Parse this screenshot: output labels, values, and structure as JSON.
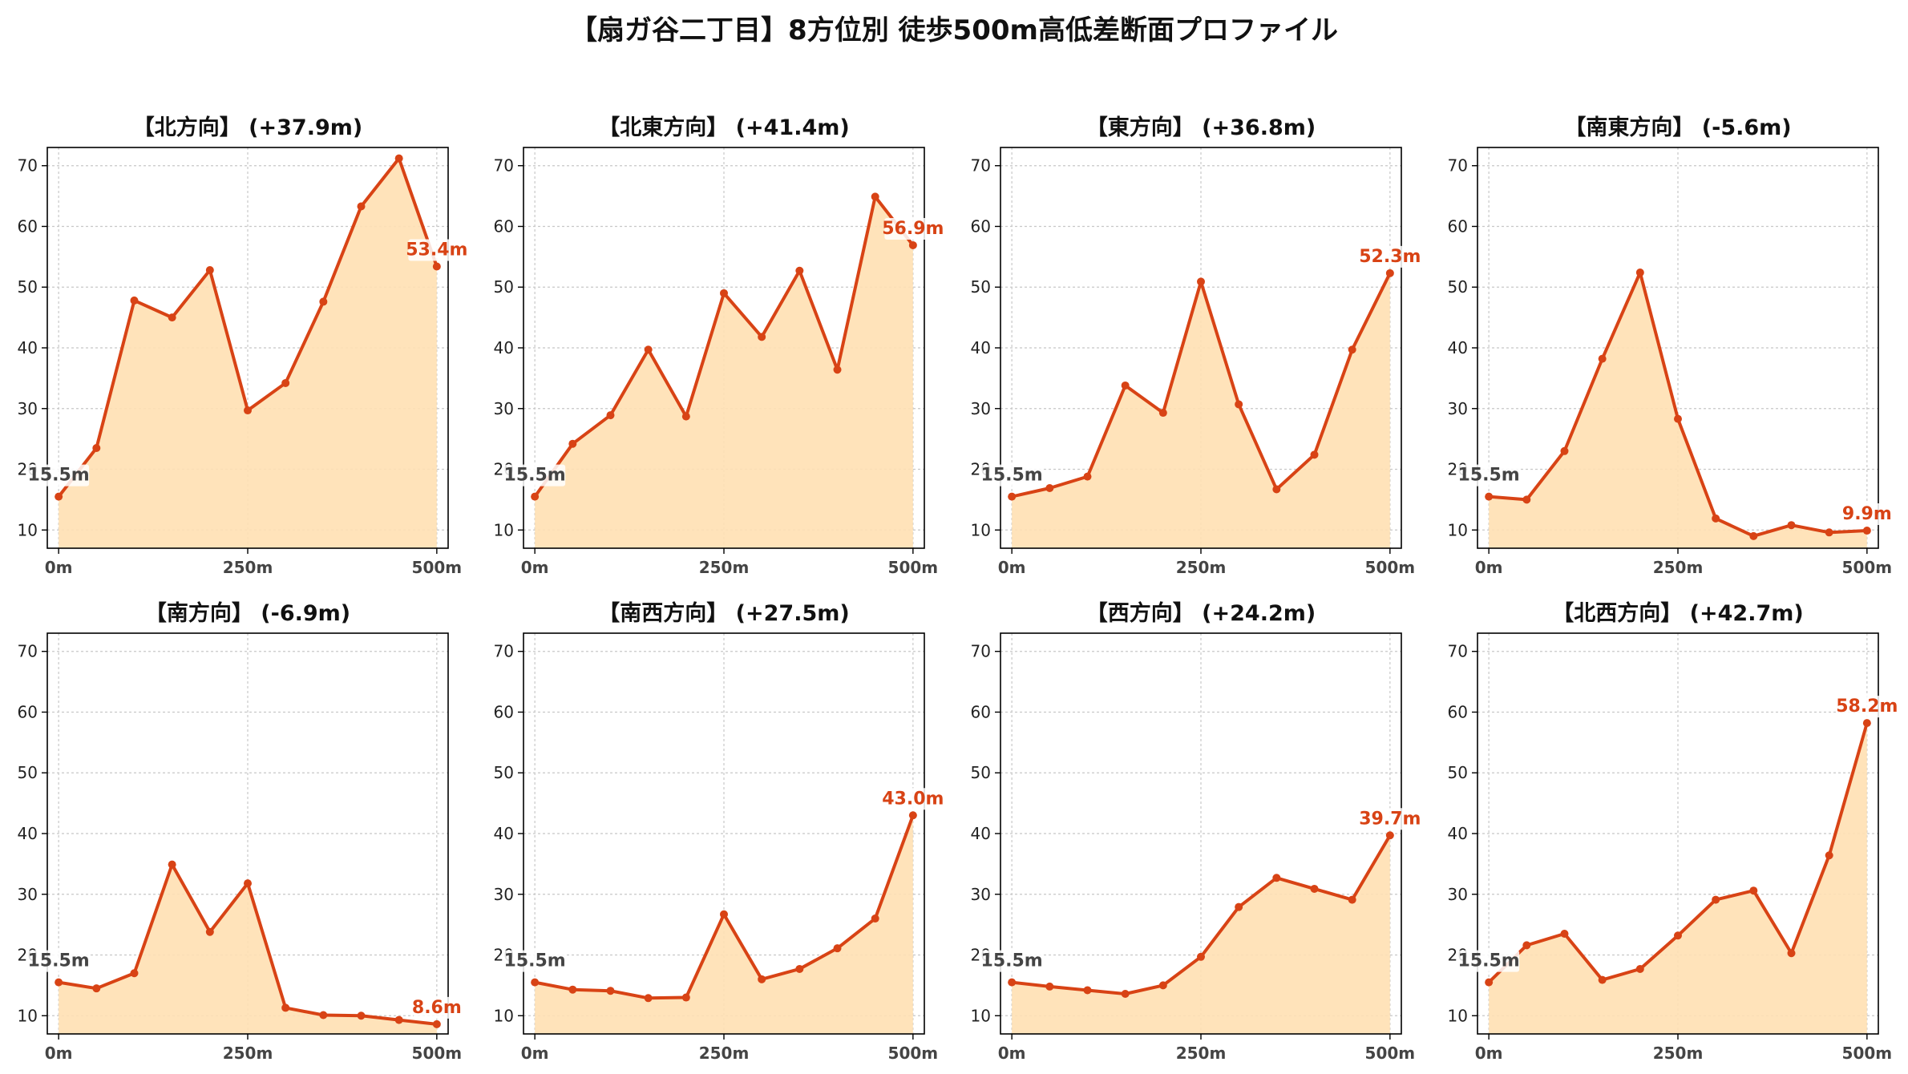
{
  "title": "【扇ガ谷二丁目】8方位別 徒歩500m高低差断面プロファイル",
  "colors": {
    "line": "#d84315",
    "fill": "#ffe0b2",
    "start_label": "#444444",
    "end_label": "#d84315",
    "grid": "#c8c8c8"
  },
  "chart_data": [
    {
      "type": "line",
      "title": "【北方向】 (+37.9m)",
      "x": [
        0,
        50,
        100,
        150,
        200,
        250,
        300,
        350,
        400,
        450,
        500
      ],
      "y": [
        15.5,
        23.5,
        47.8,
        45.0,
        52.8,
        29.7,
        34.2,
        47.6,
        63.3,
        71.2,
        53.4
      ],
      "start_label": "15.5m",
      "end_label": "53.4m",
      "xticks": [
        "0m",
        "250m",
        "500m"
      ],
      "yticks": [
        10,
        20,
        30,
        40,
        50,
        60,
        70
      ],
      "xlim": [
        -15,
        515
      ],
      "ylim": [
        7,
        73
      ],
      "grid": true
    },
    {
      "type": "line",
      "title": "【北東方向】 (+41.4m)",
      "x": [
        0,
        50,
        100,
        150,
        200,
        250,
        300,
        350,
        400,
        450,
        500
      ],
      "y": [
        15.5,
        24.2,
        28.9,
        39.7,
        28.7,
        49.0,
        41.8,
        52.7,
        36.4,
        64.9,
        56.9
      ],
      "start_label": "15.5m",
      "end_label": "56.9m",
      "xticks": [
        "0m",
        "250m",
        "500m"
      ],
      "yticks": [
        10,
        20,
        30,
        40,
        50,
        60,
        70
      ],
      "xlim": [
        -15,
        515
      ],
      "ylim": [
        7,
        73
      ],
      "grid": true
    },
    {
      "type": "line",
      "title": "【東方向】 (+36.8m)",
      "x": [
        0,
        50,
        100,
        150,
        200,
        250,
        300,
        350,
        400,
        450,
        500
      ],
      "y": [
        15.5,
        16.9,
        18.8,
        33.8,
        29.3,
        50.9,
        30.7,
        16.7,
        22.4,
        39.7,
        52.3
      ],
      "start_label": "15.5m",
      "end_label": "52.3m",
      "xticks": [
        "0m",
        "250m",
        "500m"
      ],
      "yticks": [
        10,
        20,
        30,
        40,
        50,
        60,
        70
      ],
      "xlim": [
        -15,
        515
      ],
      "ylim": [
        7,
        73
      ],
      "grid": true
    },
    {
      "type": "line",
      "title": "【南東方向】 (-5.6m)",
      "x": [
        0,
        50,
        100,
        150,
        200,
        250,
        300,
        350,
        400,
        450,
        500
      ],
      "y": [
        15.5,
        15.0,
        23.0,
        38.2,
        52.4,
        28.3,
        11.9,
        9.0,
        10.8,
        9.6,
        9.9
      ],
      "start_label": "15.5m",
      "end_label": "9.9m",
      "xticks": [
        "0m",
        "250m",
        "500m"
      ],
      "yticks": [
        10,
        20,
        30,
        40,
        50,
        60,
        70
      ],
      "xlim": [
        -15,
        515
      ],
      "ylim": [
        7,
        73
      ],
      "grid": true
    },
    {
      "type": "line",
      "title": "【南方向】 (-6.9m)",
      "x": [
        0,
        50,
        100,
        150,
        200,
        250,
        300,
        350,
        400,
        450,
        500
      ],
      "y": [
        15.5,
        14.5,
        17.0,
        34.9,
        23.8,
        31.8,
        11.3,
        10.1,
        10.0,
        9.3,
        8.6
      ],
      "start_label": "15.5m",
      "end_label": "8.6m",
      "xticks": [
        "0m",
        "250m",
        "500m"
      ],
      "yticks": [
        10,
        20,
        30,
        40,
        50,
        60,
        70
      ],
      "xlim": [
        -15,
        515
      ],
      "ylim": [
        7,
        73
      ],
      "grid": true
    },
    {
      "type": "line",
      "title": "【南西方向】 (+27.5m)",
      "x": [
        0,
        50,
        100,
        150,
        200,
        250,
        300,
        350,
        400,
        450,
        500
      ],
      "y": [
        15.5,
        14.3,
        14.1,
        12.9,
        13.0,
        26.7,
        16.0,
        17.7,
        21.1,
        26.0,
        43.0
      ],
      "start_label": "15.5m",
      "end_label": "43.0m",
      "xticks": [
        "0m",
        "250m",
        "500m"
      ],
      "yticks": [
        10,
        20,
        30,
        40,
        50,
        60,
        70
      ],
      "xlim": [
        -15,
        515
      ],
      "ylim": [
        7,
        73
      ],
      "grid": true
    },
    {
      "type": "line",
      "title": "【西方向】 (+24.2m)",
      "x": [
        0,
        50,
        100,
        150,
        200,
        250,
        300,
        350,
        400,
        450,
        500
      ],
      "y": [
        15.5,
        14.8,
        14.2,
        13.6,
        15.0,
        19.7,
        27.9,
        32.7,
        30.9,
        29.1,
        39.7
      ],
      "start_label": "15.5m",
      "end_label": "39.7m",
      "xticks": [
        "0m",
        "250m",
        "500m"
      ],
      "yticks": [
        10,
        20,
        30,
        40,
        50,
        60,
        70
      ],
      "xlim": [
        -15,
        515
      ],
      "ylim": [
        7,
        73
      ],
      "grid": true
    },
    {
      "type": "line",
      "title": "【北西方向】 (+42.7m)",
      "x": [
        0,
        50,
        100,
        150,
        200,
        250,
        300,
        350,
        400,
        450,
        500
      ],
      "y": [
        15.5,
        21.6,
        23.5,
        15.9,
        17.7,
        23.2,
        29.1,
        30.6,
        20.3,
        36.4,
        58.2
      ],
      "start_label": "15.5m",
      "end_label": "58.2m",
      "xticks": [
        "0m",
        "250m",
        "500m"
      ],
      "yticks": [
        10,
        20,
        30,
        40,
        50,
        60,
        70
      ],
      "xlim": [
        -15,
        515
      ],
      "ylim": [
        7,
        73
      ],
      "grid": true
    }
  ]
}
